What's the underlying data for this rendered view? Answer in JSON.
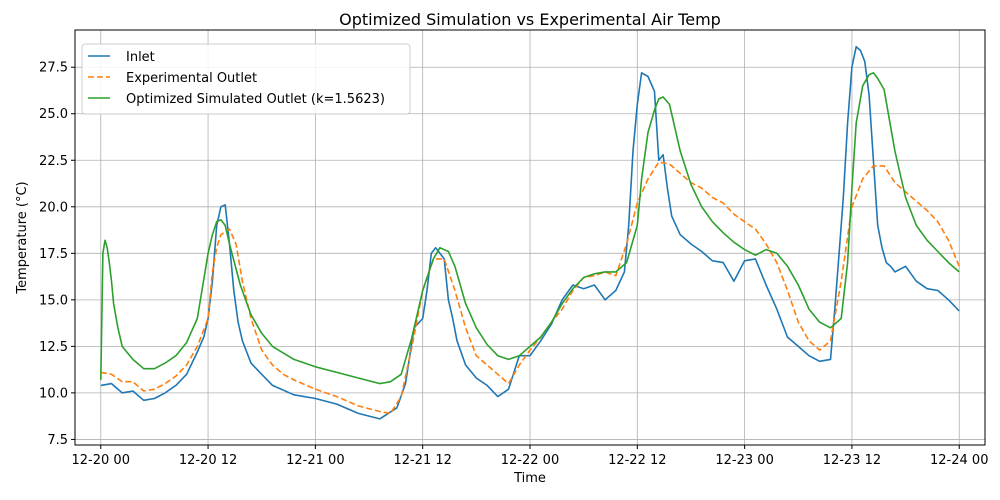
{
  "chart_data": {
    "type": "line",
    "title": "Optimized Simulation vs Experimental Air Temp",
    "xlabel": "Time",
    "ylabel": "Temperature (°C)",
    "xlim": [
      -0.12,
      4.12
    ],
    "ylim": [
      7.2,
      29.5
    ],
    "x_ticks": [
      {
        "value": 0,
        "label": "12-20 00"
      },
      {
        "value": 0.5,
        "label": "12-20 12"
      },
      {
        "value": 1,
        "label": "12-21 00"
      },
      {
        "value": 1.5,
        "label": "12-21 12"
      },
      {
        "value": 2,
        "label": "12-22 00"
      },
      {
        "value": 2.5,
        "label": "12-22 12"
      },
      {
        "value": 3,
        "label": "12-23 00"
      },
      {
        "value": 3.5,
        "label": "12-23 12"
      },
      {
        "value": 4,
        "label": "12-24 00"
      }
    ],
    "y_ticks": [
      {
        "value": 7.5,
        "label": "7.5"
      },
      {
        "value": 10.0,
        "label": "10.0"
      },
      {
        "value": 12.5,
        "label": "12.5"
      },
      {
        "value": 15.0,
        "label": "15.0"
      },
      {
        "value": 17.5,
        "label": "17.5"
      },
      {
        "value": 20.0,
        "label": "20.0"
      },
      {
        "value": 22.5,
        "label": "22.5"
      },
      {
        "value": 25.0,
        "label": "25.0"
      },
      {
        "value": 27.5,
        "label": "27.5"
      }
    ],
    "grid": true,
    "legend_position": "top-left",
    "series": [
      {
        "name": "Inlet",
        "color": "#1f77b4",
        "dash": "solid",
        "x": [
          0,
          0.05,
          0.1,
          0.15,
          0.2,
          0.25,
          0.3,
          0.35,
          0.4,
          0.45,
          0.48,
          0.5,
          0.52,
          0.54,
          0.56,
          0.58,
          0.6,
          0.62,
          0.64,
          0.66,
          0.68,
          0.7,
          0.75,
          0.8,
          0.9,
          1.0,
          1.1,
          1.2,
          1.3,
          1.38,
          1.42,
          1.46,
          1.5,
          1.52,
          1.54,
          1.56,
          1.6,
          1.62,
          1.64,
          1.66,
          1.7,
          1.75,
          1.8,
          1.85,
          1.9,
          1.95,
          2.0,
          2.05,
          2.1,
          2.15,
          2.2,
          2.25,
          2.3,
          2.35,
          2.4,
          2.44,
          2.46,
          2.48,
          2.5,
          2.52,
          2.55,
          2.58,
          2.6,
          2.62,
          2.64,
          2.66,
          2.7,
          2.75,
          2.8,
          2.85,
          2.9,
          2.95,
          3.0,
          3.05,
          3.1,
          3.15,
          3.2,
          3.25,
          3.3,
          3.35,
          3.4,
          3.42,
          3.44,
          3.46,
          3.48,
          3.5,
          3.52,
          3.54,
          3.56,
          3.58,
          3.6,
          3.62,
          3.64,
          3.66,
          3.68,
          3.7,
          3.75,
          3.8,
          3.85,
          3.9,
          3.95,
          4.0
        ],
        "y": [
          10.4,
          10.5,
          10.0,
          10.1,
          9.6,
          9.7,
          10.0,
          10.4,
          11.0,
          12.2,
          13.0,
          14.0,
          16.0,
          19.0,
          20.0,
          20.1,
          18.0,
          15.5,
          13.8,
          12.8,
          12.2,
          11.6,
          11.0,
          10.4,
          9.9,
          9.7,
          9.4,
          8.9,
          8.6,
          9.2,
          10.5,
          13.5,
          14.0,
          15.5,
          17.5,
          17.8,
          17.2,
          15.0,
          14.0,
          12.8,
          11.5,
          10.8,
          10.4,
          9.8,
          10.2,
          12.0,
          12.0,
          12.8,
          13.7,
          15.0,
          15.8,
          15.6,
          15.8,
          15.0,
          15.5,
          16.5,
          19.0,
          23.0,
          25.5,
          27.2,
          27.0,
          26.2,
          22.5,
          22.8,
          21.0,
          19.5,
          18.5,
          18.0,
          17.6,
          17.1,
          17.0,
          16.0,
          17.1,
          17.2,
          15.8,
          14.5,
          13.0,
          12.5,
          12.0,
          11.7,
          11.8,
          14.5,
          17.5,
          20.5,
          24.5,
          27.5,
          28.6,
          28.4,
          27.8,
          26.0,
          22.5,
          19.0,
          17.8,
          17.0,
          16.8,
          16.5,
          16.8,
          16.0,
          15.6,
          15.5,
          15.0,
          14.4
        ]
      },
      {
        "name": "Experimental Outlet",
        "color": "#ff7f0e",
        "dash": "dashed",
        "x": [
          0,
          0.05,
          0.1,
          0.15,
          0.2,
          0.25,
          0.3,
          0.35,
          0.4,
          0.45,
          0.5,
          0.52,
          0.54,
          0.56,
          0.6,
          0.63,
          0.66,
          0.7,
          0.75,
          0.8,
          0.85,
          0.9,
          1.0,
          1.1,
          1.2,
          1.3,
          1.35,
          1.4,
          1.45,
          1.5,
          1.55,
          1.6,
          1.65,
          1.7,
          1.75,
          1.8,
          1.85,
          1.9,
          1.95,
          2.0,
          2.05,
          2.1,
          2.15,
          2.2,
          2.25,
          2.3,
          2.35,
          2.4,
          2.45,
          2.5,
          2.55,
          2.6,
          2.65,
          2.7,
          2.75,
          2.8,
          2.85,
          2.9,
          2.95,
          3.0,
          3.05,
          3.1,
          3.15,
          3.2,
          3.25,
          3.3,
          3.35,
          3.4,
          3.45,
          3.5,
          3.55,
          3.6,
          3.65,
          3.7,
          3.75,
          3.8,
          3.85,
          3.9,
          3.95,
          4.0
        ],
        "y": [
          11.1,
          11.0,
          10.6,
          10.6,
          10.1,
          10.2,
          10.5,
          10.9,
          11.5,
          12.5,
          14.0,
          16.5,
          17.8,
          18.5,
          18.8,
          18.0,
          16.0,
          14.0,
          12.3,
          11.5,
          11.0,
          10.7,
          10.2,
          9.8,
          9.3,
          9.0,
          8.9,
          9.8,
          12.5,
          15.5,
          17.2,
          17.2,
          15.5,
          13.5,
          12.0,
          11.5,
          11.0,
          10.5,
          11.5,
          12.3,
          13.0,
          13.8,
          14.5,
          15.5,
          16.2,
          16.3,
          16.5,
          16.3,
          18.0,
          20.2,
          21.5,
          22.4,
          22.3,
          21.8,
          21.3,
          21.0,
          20.5,
          20.2,
          19.6,
          19.2,
          18.8,
          18.0,
          17.0,
          15.5,
          13.8,
          12.8,
          12.3,
          12.8,
          16.0,
          20.0,
          21.5,
          22.2,
          22.2,
          21.3,
          20.8,
          20.3,
          19.8,
          19.2,
          18.2,
          16.8
        ]
      },
      {
        "name": "Optimized Simulated Outlet (k=1.5623)",
        "color": "#2ca02c",
        "dash": "solid",
        "x": [
          0,
          0.01,
          0.02,
          0.03,
          0.04,
          0.05,
          0.06,
          0.08,
          0.1,
          0.15,
          0.2,
          0.25,
          0.3,
          0.35,
          0.4,
          0.45,
          0.5,
          0.52,
          0.54,
          0.56,
          0.58,
          0.6,
          0.65,
          0.7,
          0.75,
          0.8,
          0.9,
          1.0,
          1.1,
          1.2,
          1.3,
          1.35,
          1.4,
          1.45,
          1.5,
          1.55,
          1.58,
          1.62,
          1.65,
          1.7,
          1.75,
          1.8,
          1.85,
          1.9,
          1.95,
          2.0,
          2.05,
          2.1,
          2.15,
          2.2,
          2.25,
          2.3,
          2.35,
          2.4,
          2.45,
          2.5,
          2.52,
          2.55,
          2.58,
          2.6,
          2.62,
          2.65,
          2.7,
          2.75,
          2.8,
          2.85,
          2.9,
          2.95,
          3.0,
          3.05,
          3.1,
          3.15,
          3.2,
          3.25,
          3.3,
          3.35,
          3.4,
          3.45,
          3.48,
          3.5,
          3.52,
          3.55,
          3.58,
          3.6,
          3.62,
          3.65,
          3.7,
          3.75,
          3.8,
          3.85,
          3.9,
          3.95,
          4.0
        ],
        "y": [
          10.7,
          17.5,
          18.2,
          17.8,
          17.0,
          16.0,
          14.8,
          13.5,
          12.5,
          11.8,
          11.3,
          11.3,
          11.6,
          12.0,
          12.7,
          14.0,
          17.5,
          18.5,
          19.2,
          19.3,
          19.0,
          18.0,
          15.8,
          14.2,
          13.2,
          12.5,
          11.8,
          11.4,
          11.1,
          10.8,
          10.5,
          10.6,
          11.0,
          13.0,
          15.5,
          17.2,
          17.8,
          17.6,
          16.8,
          14.8,
          13.5,
          12.6,
          12.0,
          11.8,
          12.0,
          12.5,
          13.0,
          13.8,
          14.8,
          15.6,
          16.2,
          16.4,
          16.5,
          16.5,
          17.0,
          19.0,
          21.5,
          24.0,
          25.2,
          25.8,
          25.9,
          25.5,
          23.0,
          21.2,
          20.0,
          19.2,
          18.6,
          18.1,
          17.7,
          17.4,
          17.7,
          17.5,
          16.8,
          15.8,
          14.5,
          13.8,
          13.5,
          14.0,
          17.0,
          21.0,
          24.5,
          26.5,
          27.1,
          27.2,
          26.9,
          26.3,
          23.0,
          20.5,
          19.0,
          18.2,
          17.6,
          17.0,
          16.5
        ]
      }
    ]
  }
}
